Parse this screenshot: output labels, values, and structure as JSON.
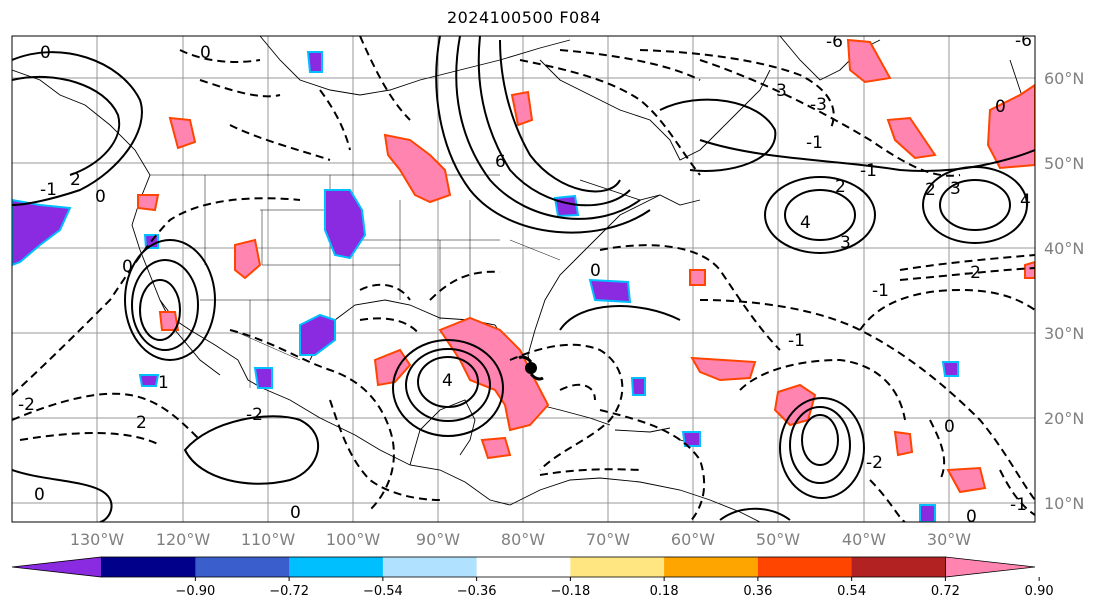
{
  "title": "2024100500 F084",
  "map": {
    "lon_labels": [
      "130°W",
      "120°W",
      "110°W",
      "100°W",
      "90°W",
      "80°W",
      "70°W",
      "60°W",
      "50°W",
      "40°W",
      "30°W"
    ],
    "lat_labels": [
      "60°N",
      "50°N",
      "40°N",
      "30°N",
      "20°N",
      "10°N"
    ],
    "contour_labels": [
      "0",
      "0",
      "2",
      "-1",
      "0",
      "-2",
      "2",
      "0",
      "0",
      "6",
      "4",
      "0",
      "-3",
      "-6",
      "-1",
      "2",
      "3",
      "4",
      "4",
      "3",
      "-2",
      "-2",
      "0",
      "-1",
      "-1",
      "-2",
      "3",
      "0",
      "1",
      "2",
      "0",
      "-1",
      "0",
      "-1",
      "-6"
    ],
    "hurricane_marker": "hurricane-symbol"
  },
  "colorbar": {
    "ticks": [
      "−0.90",
      "−0.72",
      "−0.54",
      "−0.36",
      "−0.18",
      "0.18",
      "0.36",
      "0.54",
      "0.72",
      "0.90"
    ],
    "colors": [
      "#8a2be2",
      "#00008b",
      "#3a5fcd",
      "#00bfff",
      "#b0e2ff",
      "#ffffff",
      "#ffe680",
      "#ffa500",
      "#ff4500",
      "#b22222",
      "#ff85b0"
    ]
  }
}
